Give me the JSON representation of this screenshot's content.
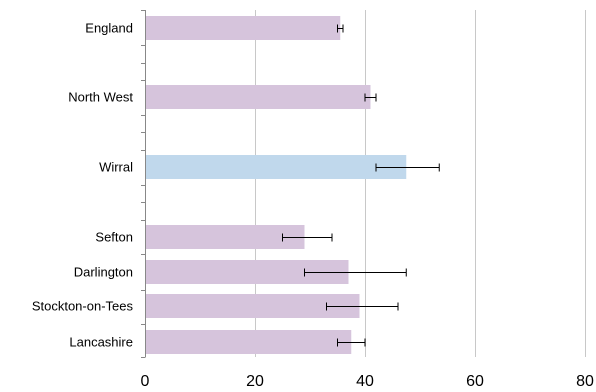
{
  "chart_data": {
    "type": "bar",
    "orientation": "horizontal",
    "categories": [
      "England",
      "North West",
      "Wirral",
      "Sefton",
      "Darlington",
      "Stockton-on-Tees",
      "Lancashire"
    ],
    "values": [
      35.5,
      41.0,
      47.5,
      29.0,
      37.0,
      39.0,
      37.5
    ],
    "error_low": [
      35.0,
      40.0,
      42.0,
      25.0,
      29.0,
      33.0,
      35.0
    ],
    "error_high": [
      36.0,
      42.0,
      53.5,
      34.0,
      47.5,
      46.0,
      40.0
    ],
    "bar_colors": [
      "#d6c4dc",
      "#d6c4dc",
      "#c0d8ec",
      "#d6c4dc",
      "#d6c4dc",
      "#d6c4dc",
      "#d6c4dc"
    ],
    "title": "",
    "xlabel": "",
    "ylabel": "",
    "xlim": [
      0,
      80
    ],
    "xticks": [
      0,
      20,
      40,
      60,
      80
    ],
    "grid": "vertical",
    "legend": "none"
  }
}
